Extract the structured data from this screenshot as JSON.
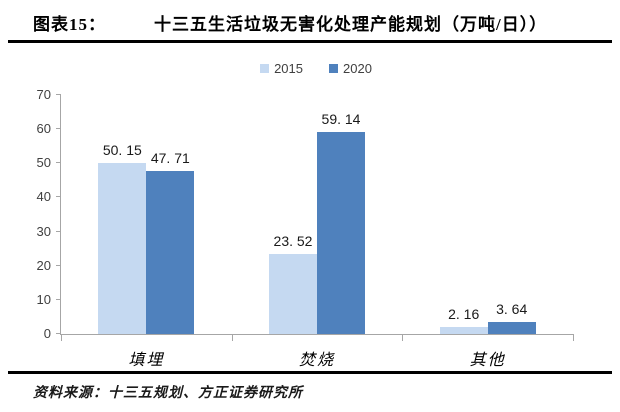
{
  "header": {
    "figure_label": "图表15：",
    "title": "十三五生活垃圾无害化处理产能规划（万吨/日））"
  },
  "footer": {
    "source": "资料来源：十三五规划、方正证券研究所"
  },
  "chart_data": {
    "type": "bar",
    "title": "十三五生活垃圾无害化处理产能规划（万吨/日））",
    "categories": [
      "填埋",
      "焚烧",
      "其他"
    ],
    "series": [
      {
        "name": "2015",
        "color": "#c5d9f1",
        "values": [
          50.15,
          23.52,
          2.16
        ],
        "labels": [
          "50. 15",
          "23. 52",
          "2. 16"
        ]
      },
      {
        "name": "2020",
        "color": "#4f81bd",
        "values": [
          47.71,
          59.14,
          3.64
        ],
        "labels": [
          "47. 71",
          "59. 14",
          "3. 64"
        ]
      }
    ],
    "xlabel": "",
    "ylabel": "",
    "ylim": [
      0,
      70
    ],
    "yticks": [
      0,
      10,
      20,
      30,
      40,
      50,
      60,
      70
    ],
    "grid": false,
    "legend_position": "top-center"
  },
  "colors": {
    "series_2015": "#c5d9f1",
    "series_2020": "#4f81bd",
    "axis_line": "#a6a6a6",
    "rule": "#000000"
  }
}
